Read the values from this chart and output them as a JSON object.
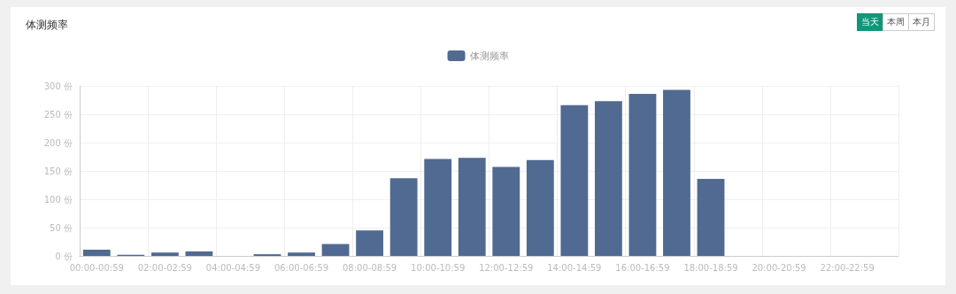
{
  "chart_data": {
    "type": "bar",
    "title": "体测频率",
    "categories": [
      "00:00-00:59",
      null,
      "02:00-02:59",
      null,
      "04:00-04:59",
      null,
      "06:00-06:59",
      null,
      "08:00-08:59",
      null,
      "10:00-10:59",
      null,
      "12:00-12:59",
      null,
      "14:00-14:59",
      null,
      "16:00-16:59",
      null,
      "18:00-18:59",
      null,
      "20:00-20:59",
      null,
      "22:00-22:59",
      null
    ],
    "series": [
      {
        "name": "体测频率",
        "color": "#506a92",
        "values": [
          11,
          2,
          6,
          8,
          0,
          3,
          6,
          21,
          45,
          137,
          171,
          173,
          157,
          169,
          266,
          273,
          286,
          293,
          136,
          0,
          0,
          0,
          0,
          0
        ]
      }
    ],
    "ylim": [
      0,
      300
    ],
    "yticks": [
      {
        "value": 0,
        "label": "0 份"
      },
      {
        "value": 50,
        "label": "50 份"
      },
      {
        "value": 100,
        "label": "100 份"
      },
      {
        "value": 150,
        "label": "150 份"
      },
      {
        "value": 200,
        "label": "200 份"
      },
      {
        "value": 250,
        "label": "250 份"
      },
      {
        "value": 300,
        "label": "300 份"
      }
    ],
    "grid": true,
    "legend": "top",
    "annotations": [
      "当天",
      "本周",
      "本月"
    ]
  }
}
